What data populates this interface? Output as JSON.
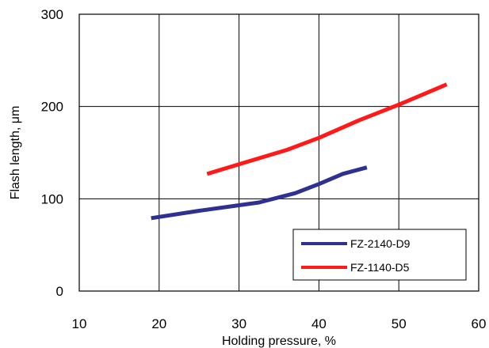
{
  "chart_data": {
    "type": "line",
    "xlabel": "Holding pressure, %",
    "ylabel": "Flash length, μm",
    "xlim": [
      10,
      60
    ],
    "ylim": [
      0,
      300
    ],
    "x_ticks": [
      10,
      20,
      30,
      40,
      50,
      60
    ],
    "y_ticks": [
      0,
      100,
      200,
      300
    ],
    "grid": true,
    "legend_position": "bottom-right",
    "series": [
      {
        "name": "FZ-2140-D9",
        "color": "#2e3192",
        "points": [
          [
            19,
            79
          ],
          [
            25,
            87
          ],
          [
            30,
            93
          ],
          [
            32.5,
            96
          ],
          [
            37,
            106
          ],
          [
            40,
            116
          ],
          [
            43,
            127
          ],
          [
            46,
            134
          ]
        ]
      },
      {
        "name": "FZ-1140-D5",
        "color": "#ff1a1a",
        "points": [
          [
            26,
            127
          ],
          [
            31,
            140
          ],
          [
            36,
            153
          ],
          [
            40,
            166
          ],
          [
            45,
            185
          ],
          [
            50,
            202
          ],
          [
            56,
            224
          ]
        ]
      }
    ]
  }
}
